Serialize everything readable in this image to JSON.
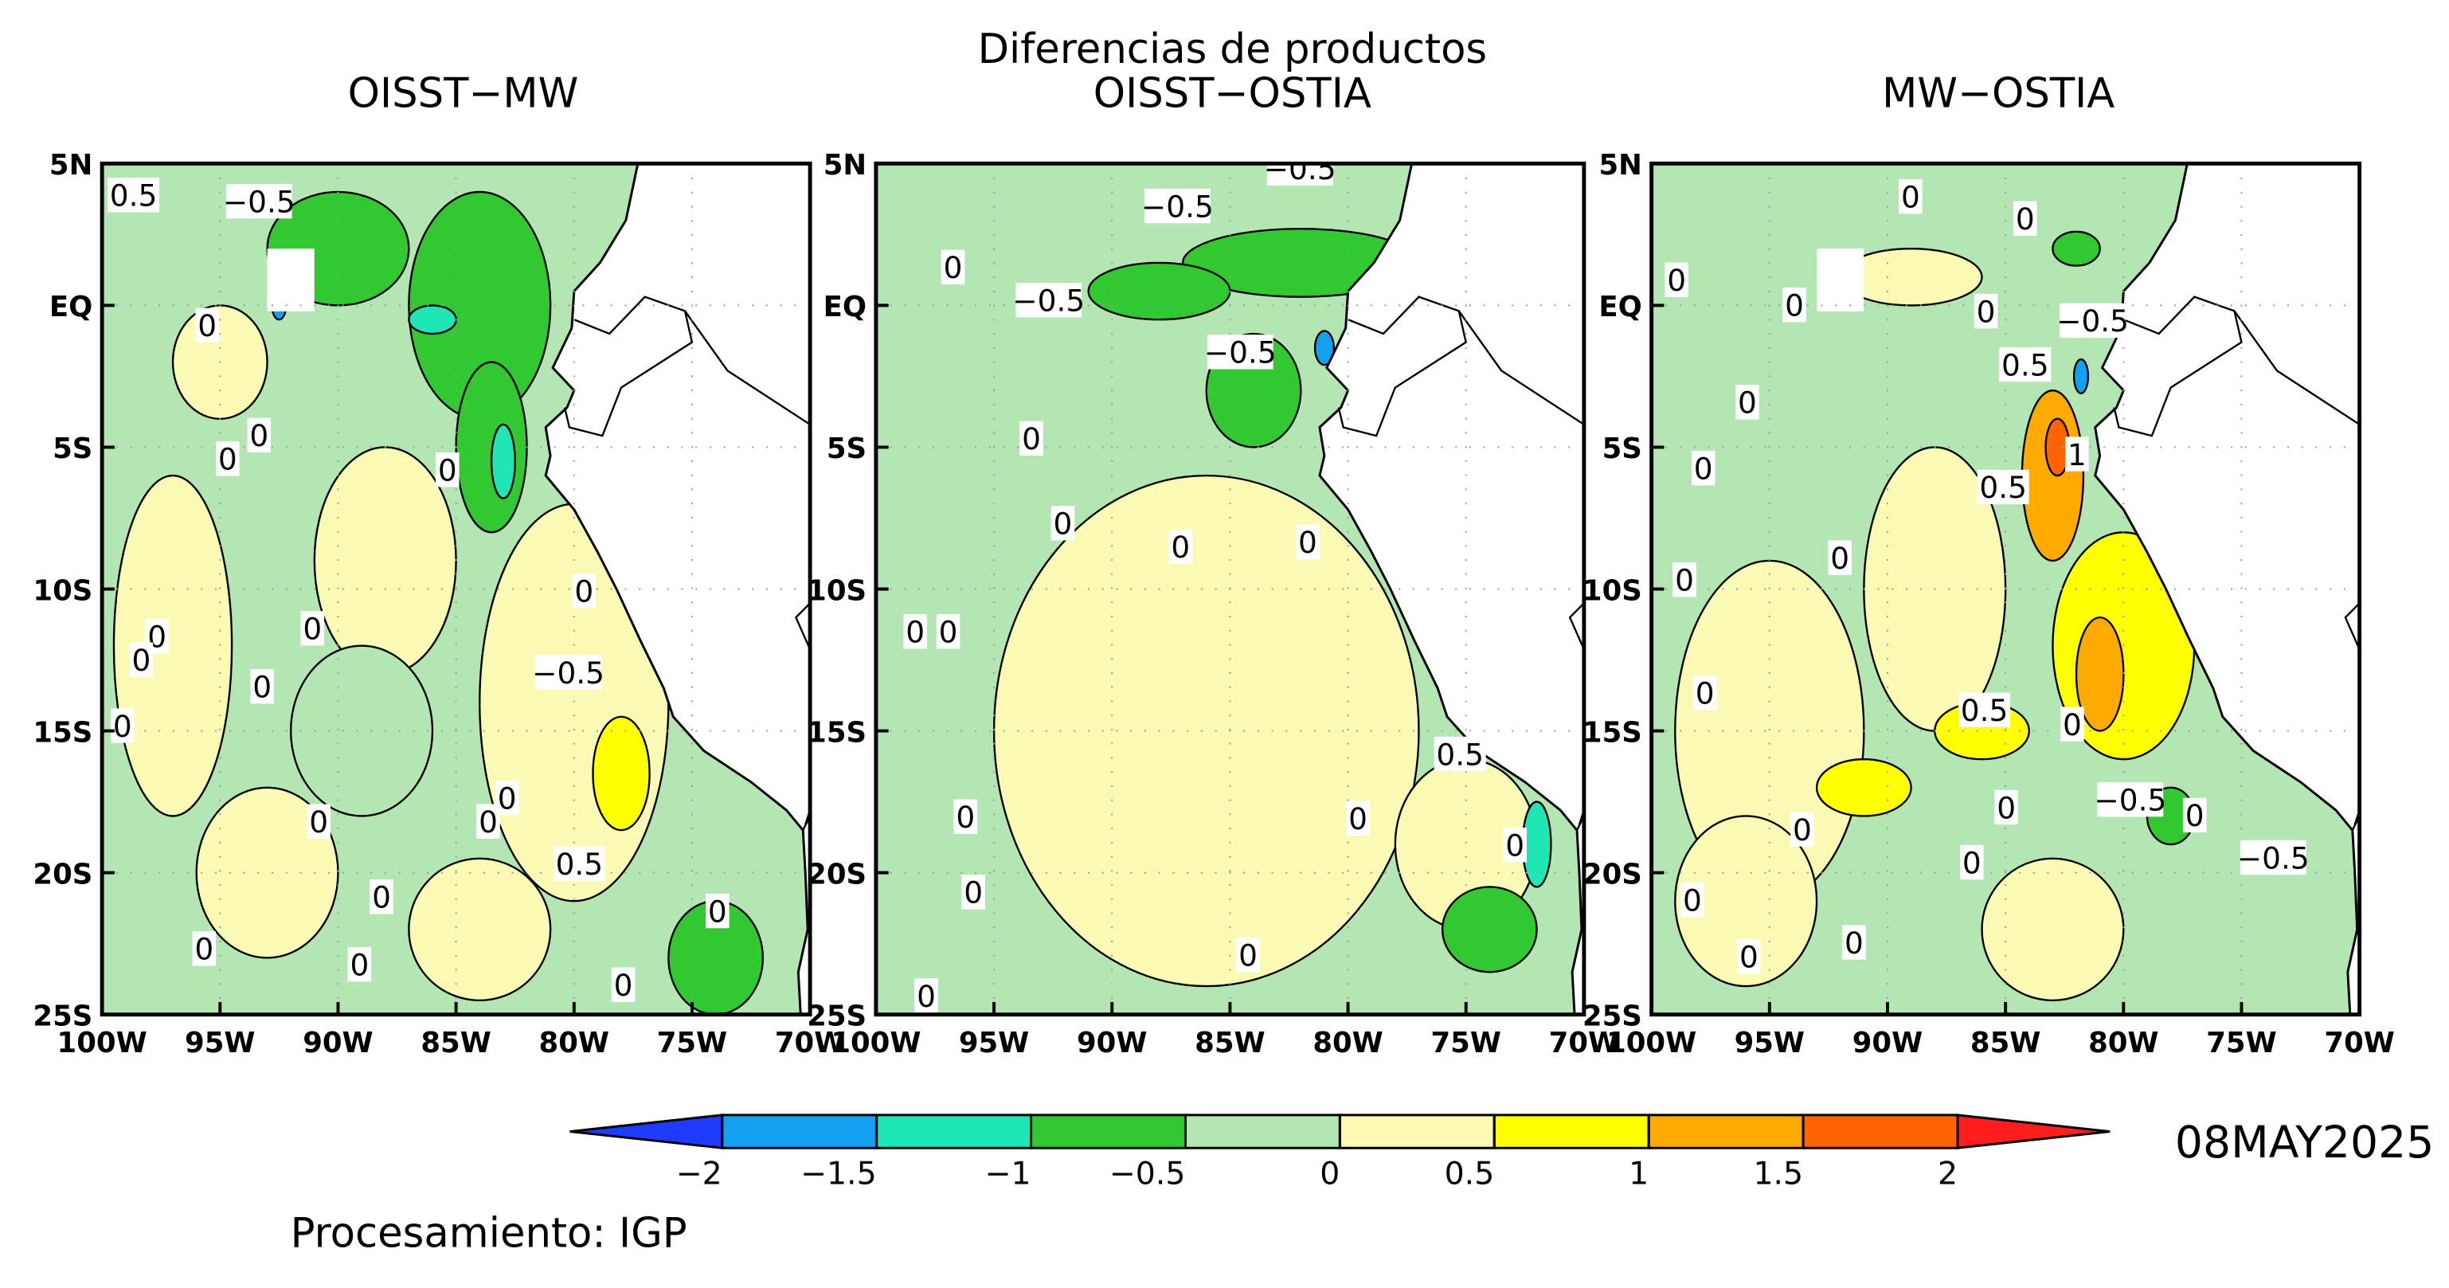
{
  "title": "Diferencias de productos",
  "panels": [
    {
      "title": "OISST−MW",
      "contour_labels": [
        "−0.5",
        "0",
        "0",
        "0",
        "0",
        "0",
        "0",
        "0",
        "0",
        "0",
        "0",
        "0",
        "0",
        "0",
        "0",
        "0",
        "0",
        "0",
        "0",
        "−0.5",
        "0.5",
        "0.5"
      ]
    },
    {
      "title": "OISST−OSTIA",
      "contour_labels": [
        "−0.5",
        "−0.5",
        "−0.5",
        "−0.5",
        "0",
        "0",
        "0",
        "0",
        "0",
        "0",
        "0",
        "0",
        "0",
        "0",
        "0",
        "0",
        "0",
        "0.5"
      ]
    },
    {
      "title": "MW−OSTIA",
      "contour_labels": [
        "0",
        "0",
        "0",
        "0",
        "0",
        "0",
        "0",
        "0",
        "0",
        "0",
        "0",
        "0",
        "0",
        "0",
        "0",
        "0",
        "0",
        "0",
        "−0.5",
        "−0.5",
        "−0.5",
        "0.5",
        "0.5",
        "0.5",
        "1"
      ]
    }
  ],
  "lat_ticks": [
    "5N",
    "EQ",
    "5S",
    "10S",
    "15S",
    "20S",
    "25S"
  ],
  "lon_ticks": [
    "100W",
    "95W",
    "90W",
    "85W",
    "80W",
    "75W",
    "70W"
  ],
  "colorbar": {
    "ticks": [
      {
        "value": -2,
        "label": "−2"
      },
      {
        "value": -1.5,
        "label": "−1.5"
      },
      {
        "value": -1,
        "label": "−1"
      },
      {
        "value": -0.5,
        "label": "−0.5"
      },
      0,
      0.5,
      1,
      1.5,
      2
    ],
    "colors": [
      "#1e3cff",
      "#14a0f0",
      "#1ee6b4",
      "#32c832",
      "#b4e6b4",
      "#fafab4",
      "#ffff00",
      "#ffaa00",
      "#ff6400",
      "#ff1e1e"
    ]
  },
  "date": "08MAY2025",
  "credit": "Procesamiento: IGP"
}
